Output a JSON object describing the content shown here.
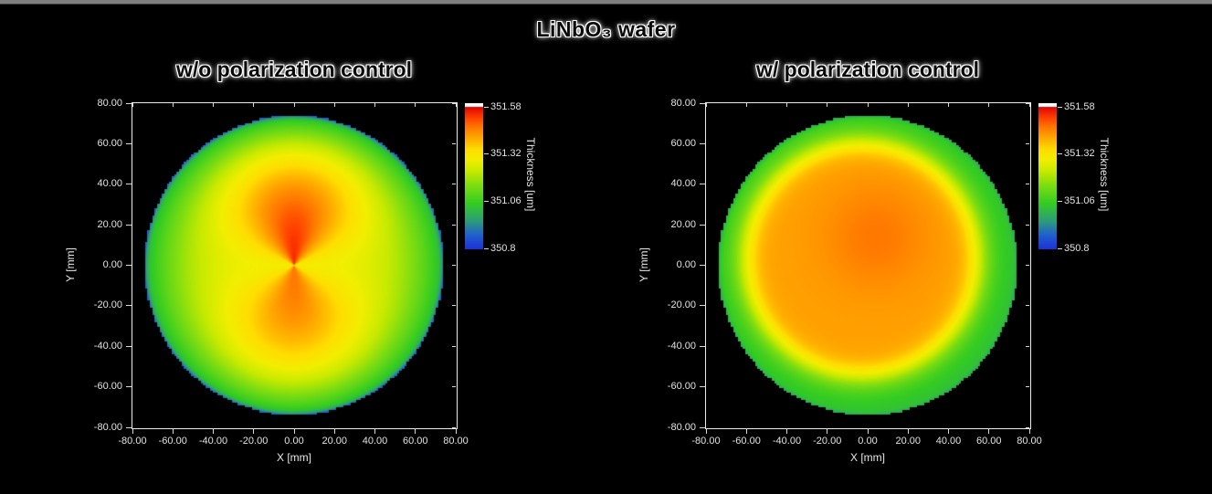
{
  "page": {
    "title": "LiNbO₃ wafer",
    "background": "#000000",
    "top_border_color": "#7f7f7f"
  },
  "chart_data": [
    {
      "type": "heatmap",
      "title": "w/o polarization control",
      "xlabel": "X [mm]",
      "ylabel": "Y [mm]",
      "xlim": [
        -80,
        80
      ],
      "ylim": [
        -80,
        80
      ],
      "xticks": [
        "-80.00",
        "-60.00",
        "-40.00",
        "-20.00",
        "0.00",
        "20.00",
        "40.00",
        "60.00",
        "80.00"
      ],
      "yticks": [
        "80.00",
        "60.00",
        "40.00",
        "20.00",
        "0.00",
        "-20.00",
        "-40.00",
        "-60.00",
        "-80.00"
      ],
      "grid": false,
      "colorbar": {
        "label": "Thickness [um]",
        "ticks": [
          "351.58",
          "351.32",
          "351.06",
          "350.8"
        ],
        "tick_values": [
          351.58,
          351.32,
          351.06,
          350.8
        ],
        "range": [
          350.8,
          351.58
        ],
        "overflow_color": "#ffffff"
      },
      "wafer": {
        "model": "lobes",
        "description": "circular wafer, green rim, yellow mid, two orange-red lobes above and below center pinched to a point at wafer center",
        "radius_mm": 74,
        "base_center_um": 351.3,
        "base_edge_um": 351.0,
        "lobe_amp_top_um": 0.24,
        "lobe_amp_bottom_um": 0.17,
        "rim_um": 350.87,
        "pinch_center_mm": [
          0,
          0
        ]
      }
    },
    {
      "type": "heatmap",
      "title": "w/ polarization control",
      "xlabel": "X [mm]",
      "ylabel": "Y [mm]",
      "xlim": [
        -80,
        80
      ],
      "ylim": [
        -80,
        80
      ],
      "xticks": [
        "-80.00",
        "-60.00",
        "-40.00",
        "-20.00",
        "0.00",
        "20.00",
        "40.00",
        "60.00",
        "80.00"
      ],
      "yticks": [
        "80.00",
        "60.00",
        "40.00",
        "20.00",
        "0.00",
        "-20.00",
        "-40.00",
        "-60.00",
        "-80.00"
      ],
      "grid": false,
      "colorbar": {
        "label": "Thickness [um]",
        "ticks": [
          "351.58",
          "351.32",
          "351.06",
          "350.8"
        ],
        "tick_values": [
          351.58,
          351.32,
          351.06,
          350.8
        ],
        "range": [
          350.8,
          351.58
        ],
        "overflow_color": "#ffffff"
      },
      "wafer": {
        "model": "plateau",
        "description": "uniform orange plateau covering most of wafer, yellow transition ring, green rim",
        "radius_mm": 74,
        "edge_um": 351.02,
        "plateau_amp_um": 0.4,
        "plateau_radius_frac": 0.8,
        "sharpness": 14,
        "center_offset_mm": [
          -3,
          3
        ],
        "hotspot": {
          "x_mm": 4,
          "y_mm": 14,
          "amp_um": 0.05,
          "sigma_mm": 18
        },
        "rim_um": 350.97
      }
    }
  ],
  "colormap": {
    "range": [
      350.8,
      351.58
    ],
    "stops": [
      [
        0.0,
        "#1b34d8"
      ],
      [
        0.1,
        "#2160cf"
      ],
      [
        0.2,
        "#2d9e77"
      ],
      [
        0.32,
        "#33cc22"
      ],
      [
        0.45,
        "#7fdd11"
      ],
      [
        0.55,
        "#c8ea00"
      ],
      [
        0.63,
        "#f2ee00"
      ],
      [
        0.7,
        "#ffdd00"
      ],
      [
        0.78,
        "#ffaa00"
      ],
      [
        0.86,
        "#ff7700"
      ],
      [
        0.93,
        "#ff3c00"
      ],
      [
        1.0,
        "#dd0700"
      ]
    ]
  }
}
